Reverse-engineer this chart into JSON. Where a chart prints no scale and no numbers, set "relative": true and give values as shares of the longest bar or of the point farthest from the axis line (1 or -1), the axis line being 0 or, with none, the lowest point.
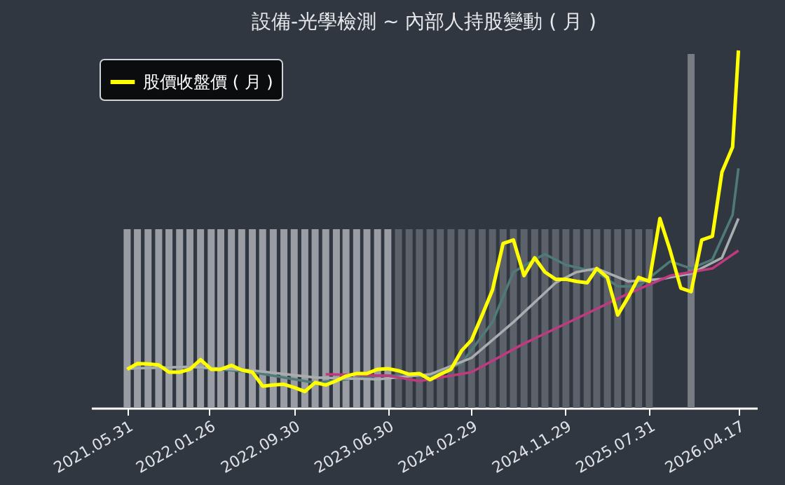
{
  "chart_data": {
    "type": "line",
    "title": "設備-光學檢測 ~ 內部人持股變動 ( 月 )",
    "relative": true,
    "legend": "top left",
    "grid": false,
    "x": [
      "2021-05-31",
      "2021-06-30",
      "2021-07-31",
      "2021-08-31",
      "2021-09-30",
      "2021-10-31",
      "2021-11-30",
      "2021-12-31",
      "2022-01-31",
      "2022-02-28",
      "2022-03-31",
      "2022-04-30",
      "2022-05-31",
      "2022-06-30",
      "2022-07-31",
      "2022-08-31",
      "2022-09-30",
      "2022-10-31",
      "2022-11-30",
      "2022-12-31",
      "2023-01-31",
      "2023-02-28",
      "2023-03-31",
      "2023-04-30",
      "2023-05-31",
      "2023-06-30",
      "2023-07-31",
      "2023-08-31",
      "2023-09-30",
      "2023-10-31",
      "2023-11-30",
      "2023-12-31",
      "2024-01-31",
      "2024-02-29",
      "2024-03-31",
      "2024-04-30",
      "2024-05-31",
      "2024-06-30",
      "2024-07-31",
      "2024-08-31",
      "2024-09-30",
      "2024-10-31",
      "2024-11-30",
      "2024-12-31",
      "2025-01-31",
      "2025-02-28",
      "2025-03-31",
      "2025-04-30",
      "2025-05-31",
      "2025-06-30",
      "2025-07-31",
      "2025-08-31",
      "2025-09-30",
      "2025-10-31",
      "2025-11-30",
      "2025-12-31",
      "2026-01-31",
      "2026-02-28",
      "2026-03-31",
      "2026-04-17"
    ],
    "xlim": [
      "2021-02-15",
      "2026-06-10"
    ],
    "xticks": [
      {
        "value": "2021-05-31",
        "label": "2021.05.31"
      },
      {
        "value": "2022-01-26",
        "label": "2022.01.26"
      },
      {
        "value": "2022-09-30",
        "label": "2022.09.30"
      },
      {
        "value": "2023-06-30",
        "label": "2023.06.30"
      },
      {
        "value": "2024-02-29",
        "label": "2024.02.29"
      },
      {
        "value": "2024-11-29",
        "label": "2024.11.29"
      },
      {
        "value": "2025-07-31",
        "label": "2025.07.31"
      },
      {
        "value": "2026-04-17",
        "label": "2026.04.17"
      }
    ],
    "series": [
      {
        "type": "bar",
        "x": [
          "2021-05-31",
          "2021-06-30",
          "2021-07-31",
          "2021-08-31",
          "2021-09-30",
          "2021-10-31",
          "2021-11-30",
          "2021-12-31",
          "2022-01-31",
          "2022-02-28",
          "2022-03-31",
          "2022-04-30",
          "2022-05-31",
          "2022-06-30",
          "2022-07-31",
          "2022-08-31",
          "2022-09-30",
          "2022-10-31",
          "2022-11-30",
          "2022-12-31",
          "2023-01-31",
          "2023-02-28",
          "2023-03-31",
          "2023-04-30",
          "2023-05-31",
          "2023-06-30",
          "2023-07-31",
          "2023-08-31",
          "2023-09-30",
          "2023-10-31",
          "2023-11-30",
          "2023-12-31",
          "2024-01-31",
          "2024-02-29",
          "2024-03-31",
          "2024-04-30",
          "2024-05-31",
          "2024-06-30",
          "2024-07-31",
          "2024-08-31",
          "2024-09-30",
          "2024-10-31",
          "2024-11-30",
          "2024-12-31",
          "2025-01-31",
          "2025-02-28",
          "2025-03-31",
          "2025-04-30",
          "2025-05-31",
          "2025-06-30",
          "2025-07-31",
          "2025-11-30"
        ],
        "values": [
          0.5,
          0.5,
          0.5,
          0.5,
          0.5,
          0.5,
          0.5,
          0.5,
          0.5,
          0.5,
          0.5,
          0.5,
          0.5,
          0.5,
          0.5,
          0.5,
          0.5,
          0.5,
          0.5,
          0.5,
          0.5,
          0.5,
          0.5,
          0.5,
          0.5,
          0.5,
          0.5,
          0.5,
          0.5,
          0.5,
          0.5,
          0.5,
          0.5,
          0.5,
          0.5,
          0.5,
          0.5,
          0.5,
          0.5,
          0.5,
          0.5,
          0.5,
          0.5,
          0.5,
          0.5,
          0.5,
          0.5,
          0.5,
          0.5,
          0.5,
          0.5,
          0.99
        ],
        "colors": [
          "#9a9da4",
          "#9a9da4",
          "#9a9da4",
          "#9a9da4",
          "#9a9da4",
          "#9a9da4",
          "#9a9da4",
          "#9a9da4",
          "#9a9da4",
          "#9a9da4",
          "#9a9da4",
          "#9a9da4",
          "#9a9da4",
          "#9a9da4",
          "#9a9da4",
          "#9a9da4",
          "#9a9da4",
          "#9a9da4",
          "#9a9da4",
          "#9a9da4",
          "#9a9da4",
          "#9a9da4",
          "#9a9da4",
          "#9a9da4",
          "#9a9da4",
          "#9a9da4",
          "#5d6169",
          "#5d6169",
          "#5d6169",
          "#5d6169",
          "#5d6169",
          "#5d6169",
          "#5d6169",
          "#5d6169",
          "#5d6169",
          "#5d6169",
          "#5d6169",
          "#5d6169",
          "#5d6169",
          "#5d6169",
          "#5d6169",
          "#5d6169",
          "#5d6169",
          "#5d6169",
          "#5d6169",
          "#5d6169",
          "#5d6169",
          "#5d6169",
          "#5d6169",
          "#5d6169",
          "#5d6169",
          "#777b82"
        ]
      },
      {
        "color": "#4f7a78",
        "x": [
          "2021-05-31",
          "2021-11-30",
          "2022-05-31",
          "2022-11-30",
          "2023-05-31",
          "2023-10-31",
          "2024-01-31",
          "2024-04-30",
          "2024-06-30",
          "2024-08-31",
          "2024-09-30",
          "2024-11-30",
          "2025-02-28",
          "2025-04-30",
          "2025-06-30",
          "2025-09-30",
          "2025-11-30",
          "2026-01-31",
          "2026-03-31",
          "2026-04-17"
        ],
        "values": [
          0.11,
          0.115,
          0.1,
          0.07,
          0.09,
          0.09,
          0.125,
          0.24,
          0.38,
          0.415,
          0.43,
          0.4,
          0.38,
          0.34,
          0.34,
          0.41,
          0.39,
          0.415,
          0.54,
          0.67
        ]
      },
      {
        "color": "#a9adb0",
        "x": [
          "2021-05-31",
          "2021-11-30",
          "2022-05-31",
          "2022-11-30",
          "2023-05-31",
          "2023-10-31",
          "2024-02-29",
          "2024-06-30",
          "2024-10-31",
          "2024-12-31",
          "2025-02-28",
          "2025-05-31",
          "2025-08-31",
          "2025-11-30",
          "2026-02-28",
          "2026-04-17"
        ],
        "values": [
          0.11,
          0.115,
          0.105,
          0.085,
          0.08,
          0.094,
          0.14,
          0.24,
          0.35,
          0.38,
          0.39,
          0.354,
          0.36,
          0.376,
          0.42,
          0.53
        ]
      },
      {
        "color": "#c03a80",
        "x": [
          "2022-12-31",
          "2023-06-30",
          "2023-09-30",
          "2024-02-29",
          "2024-07-31",
          "2024-12-31",
          "2025-05-31",
          "2025-09-30",
          "2026-01-31",
          "2026-04-17"
        ],
        "values": [
          0.094,
          0.09,
          0.075,
          0.1,
          0.18,
          0.25,
          0.32,
          0.37,
          0.39,
          0.44
        ]
      },
      {
        "name": "股價收盤價 ( 月 )",
        "color": "#ffff00",
        "values": [
          0.108,
          0.124,
          0.123,
          0.12,
          0.1,
          0.1,
          0.108,
          0.135,
          0.108,
          0.108,
          0.119,
          0.106,
          0.1,
          0.061,
          0.064,
          0.066,
          0.057,
          0.046,
          0.071,
          0.064,
          0.076,
          0.089,
          0.096,
          0.096,
          0.108,
          0.11,
          0.104,
          0.094,
          0.096,
          0.079,
          0.094,
          0.108,
          0.16,
          0.19,
          0.26,
          0.33,
          0.46,
          0.47,
          0.37,
          0.42,
          0.38,
          0.36,
          0.36,
          0.354,
          0.35,
          0.39,
          0.365,
          0.26,
          0.31,
          0.365,
          0.354,
          0.53,
          0.44,
          0.335,
          0.325,
          0.47,
          0.48,
          0.66,
          0.73,
          1.0
        ]
      }
    ]
  }
}
